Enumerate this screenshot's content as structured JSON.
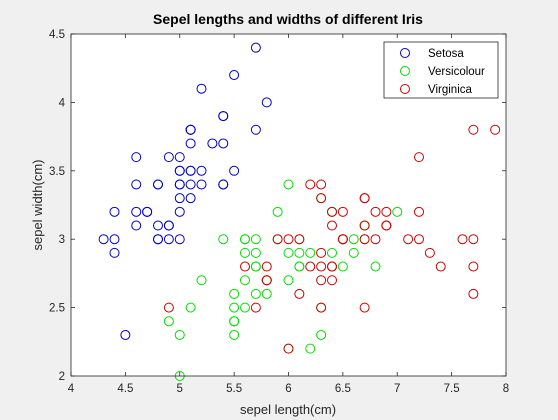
{
  "chart_data": {
    "type": "scatter",
    "title": "Sepel lengths and widths of different Iris",
    "xlabel": "sepel length(cm)",
    "ylabel": "sepel width(cm)",
    "xlim": [
      4,
      8
    ],
    "ylim": [
      2,
      4.5
    ],
    "xticks": [
      "4",
      "4.5",
      "5",
      "5.5",
      "6",
      "6.5",
      "7",
      "7.5",
      "8"
    ],
    "yticks": [
      "2",
      "2.5",
      "3",
      "3.5",
      "4",
      "4.5"
    ],
    "grid": false,
    "legend": "top-right",
    "marker": "open-circle",
    "series": [
      {
        "name": "Setosa",
        "color": "#0000cc",
        "x": [
          5.1,
          4.9,
          4.7,
          4.6,
          5.0,
          5.4,
          4.6,
          5.0,
          4.4,
          4.9,
          5.4,
          4.8,
          4.8,
          4.3,
          5.8,
          5.7,
          5.4,
          5.1,
          5.7,
          5.1,
          5.4,
          5.1,
          4.6,
          5.1,
          4.8,
          5.0,
          5.0,
          5.2,
          5.2,
          4.7,
          4.8,
          5.4,
          5.2,
          5.5,
          4.9,
          5.0,
          5.5,
          4.9,
          4.4,
          5.1,
          5.0,
          4.5,
          4.4,
          5.0,
          5.1,
          4.8,
          5.1,
          4.6,
          5.3,
          5.0
        ],
        "y": [
          3.5,
          3.0,
          3.2,
          3.1,
          3.6,
          3.9,
          3.4,
          3.4,
          2.9,
          3.1,
          3.7,
          3.4,
          3.0,
          3.0,
          4.0,
          4.4,
          3.9,
          3.5,
          3.8,
          3.8,
          3.4,
          3.7,
          3.6,
          3.3,
          3.4,
          3.0,
          3.4,
          3.5,
          3.4,
          3.2,
          3.1,
          3.4,
          4.1,
          4.2,
          3.1,
          3.2,
          3.5,
          3.6,
          3.0,
          3.4,
          3.5,
          2.3,
          3.2,
          3.5,
          3.8,
          3.0,
          3.8,
          3.2,
          3.7,
          3.3
        ]
      },
      {
        "name": "Versicolour",
        "color": "#00e000",
        "x": [
          7.0,
          6.4,
          6.9,
          5.5,
          6.5,
          5.7,
          6.3,
          4.9,
          6.6,
          5.2,
          5.0,
          5.9,
          6.0,
          6.1,
          5.6,
          6.7,
          5.6,
          5.8,
          6.2,
          5.6,
          5.9,
          6.1,
          6.3,
          6.1,
          6.4,
          6.6,
          6.8,
          6.7,
          6.0,
          5.7,
          5.5,
          5.5,
          5.8,
          6.0,
          5.4,
          6.0,
          6.7,
          6.3,
          5.6,
          5.5,
          5.5,
          6.1,
          5.8,
          5.0,
          5.6,
          5.7,
          5.7,
          6.2,
          5.1,
          5.7
        ],
        "y": [
          3.2,
          3.2,
          3.1,
          2.3,
          2.8,
          2.8,
          3.3,
          2.4,
          2.9,
          2.7,
          2.0,
          3.0,
          2.2,
          2.9,
          2.9,
          3.1,
          3.0,
          2.7,
          2.2,
          2.5,
          3.2,
          2.8,
          2.5,
          2.8,
          2.9,
          3.0,
          2.8,
          3.0,
          2.9,
          2.6,
          2.4,
          2.4,
          2.7,
          2.7,
          3.0,
          3.4,
          3.1,
          2.3,
          3.0,
          2.5,
          2.6,
          3.0,
          2.6,
          2.3,
          2.7,
          3.0,
          2.9,
          2.9,
          2.5,
          2.8
        ]
      },
      {
        "name": "Virginica",
        "color": "#d00000",
        "x": [
          6.3,
          5.8,
          7.1,
          6.3,
          6.5,
          7.6,
          4.9,
          7.3,
          6.7,
          7.2,
          6.5,
          6.4,
          6.8,
          5.7,
          5.8,
          6.4,
          6.5,
          7.7,
          7.7,
          6.0,
          6.9,
          5.6,
          7.7,
          6.3,
          6.7,
          7.2,
          6.2,
          6.1,
          6.4,
          7.2,
          7.4,
          7.9,
          6.4,
          6.3,
          6.1,
          7.7,
          6.3,
          6.4,
          6.0,
          6.9,
          6.7,
          6.9,
          5.8,
          6.8,
          6.7,
          6.7,
          6.3,
          6.5,
          6.2,
          5.9
        ],
        "y": [
          3.3,
          2.7,
          3.0,
          2.9,
          3.0,
          3.0,
          2.5,
          2.9,
          2.5,
          3.6,
          3.2,
          2.7,
          3.0,
          2.5,
          2.8,
          3.2,
          3.0,
          3.8,
          2.6,
          2.2,
          3.2,
          2.8,
          2.8,
          2.7,
          3.3,
          3.2,
          2.8,
          3.0,
          2.8,
          3.0,
          2.8,
          3.8,
          2.8,
          2.8,
          2.6,
          3.0,
          3.4,
          3.1,
          3.0,
          3.1,
          3.1,
          3.1,
          2.7,
          3.2,
          3.3,
          3.0,
          2.5,
          3.0,
          3.4,
          3.0
        ]
      }
    ]
  }
}
